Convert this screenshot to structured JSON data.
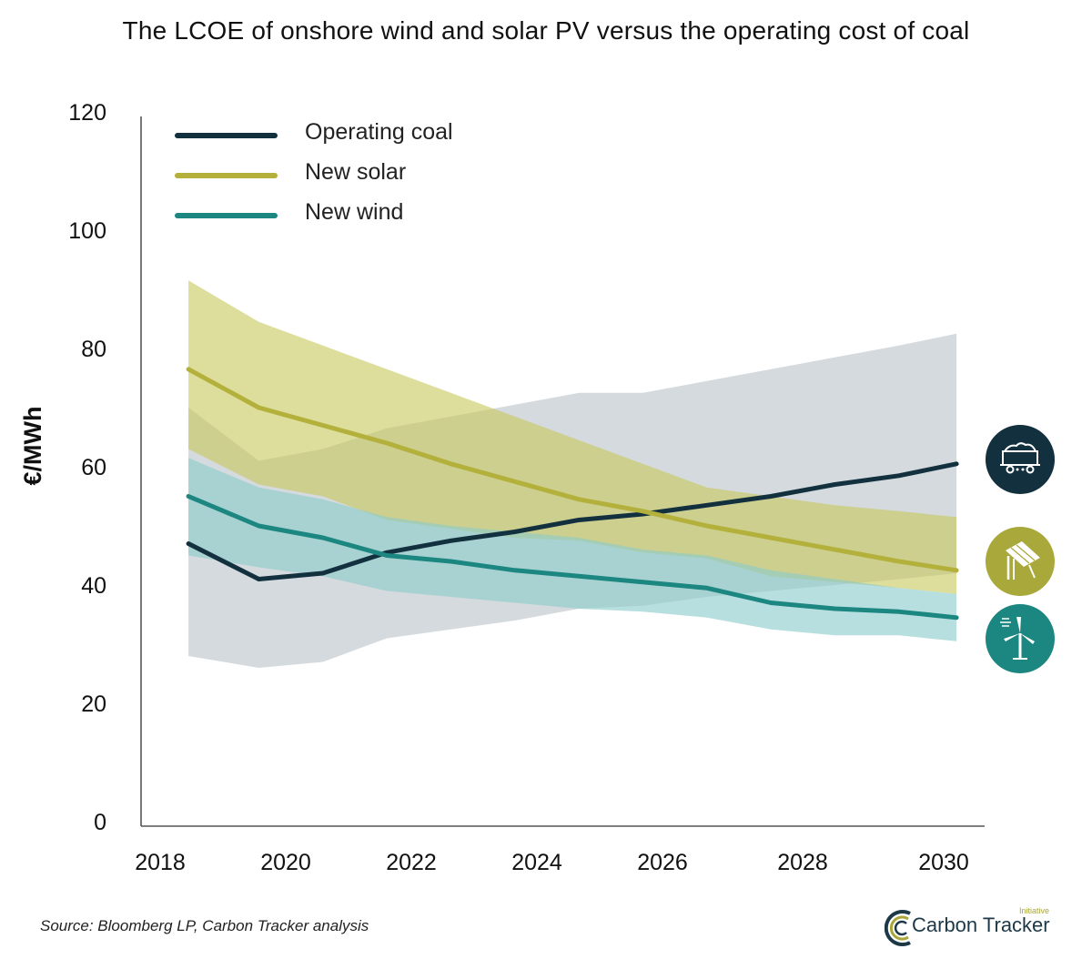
{
  "chart_data": {
    "type": "line",
    "title": "The LCOE of onshore wind and solar PV versus the operating cost of coal",
    "ylabel": "€/MWh",
    "xlabel": "",
    "ylim": [
      0,
      120
    ],
    "yticks": [
      0,
      20,
      40,
      60,
      80,
      100,
      120
    ],
    "xticks": [
      2018,
      2020,
      2022,
      2024,
      2026,
      2028,
      2030
    ],
    "xticks_labels": [
      "2018",
      "2020",
      "2022",
      "2024",
      "2026",
      "2028",
      "2030"
    ],
    "yticks_labels": [
      "0",
      "20",
      "40",
      "60",
      "80",
      "100",
      "120"
    ],
    "x": [
      2018.2,
      2019.3,
      2020.3,
      2021.3,
      2022.3,
      2023.3,
      2024.3,
      2025.3,
      2026.3,
      2027.3,
      2028.3,
      2029.3,
      2030.2
    ],
    "series": [
      {
        "name": "Operating coal",
        "color": "#13303f",
        "values": [
          47,
          41,
          42,
          45.5,
          47.5,
          49,
          51,
          52,
          53.5,
          55,
          57,
          58.5,
          60.5
        ],
        "band_low": [
          28,
          26,
          27,
          31,
          32.5,
          34,
          36,
          36.5,
          38,
          39,
          40,
          41,
          42
        ],
        "band_high": [
          70,
          61,
          63,
          66.5,
          68.5,
          70.5,
          72.5,
          72.5,
          74.5,
          76.5,
          78.5,
          80.5,
          82.5
        ],
        "band_color": "#b9c3c8"
      },
      {
        "name": "New solar",
        "color": "#b3b13b",
        "values": [
          76.5,
          70,
          67,
          64,
          60.5,
          57.5,
          54.5,
          52.5,
          50,
          48,
          46,
          44,
          42.5
        ],
        "band_low": [
          63,
          57,
          55,
          51,
          49.5,
          48,
          47.5,
          45.5,
          44.5,
          41.5,
          40.5,
          39.5,
          38.5
        ],
        "band_high": [
          91.5,
          84.5,
          80.5,
          76.5,
          72.5,
          68.5,
          64.5,
          60.5,
          56.5,
          55,
          53.5,
          52.5,
          51.5
        ],
        "band_color": "#c8c860"
      },
      {
        "name": "New wind",
        "color": "#1c8680",
        "values": [
          55,
          50,
          48,
          45,
          44,
          42.5,
          41.5,
          40.5,
          39.5,
          37,
          36,
          35.5,
          34.5
        ],
        "band_low": [
          45,
          43,
          41.5,
          39,
          38,
          37,
          36,
          35.5,
          34.5,
          32.5,
          31.5,
          31.5,
          30.5
        ],
        "band_high": [
          61.5,
          56.5,
          54.5,
          51.5,
          50,
          49,
          48,
          46,
          45,
          42.5,
          41,
          39.5,
          38.5
        ],
        "band_color": "#8ccccc"
      }
    ],
    "legend_position": "top-left"
  },
  "icons": [
    {
      "name": "coal-wagon-icon",
      "color": "#13303f"
    },
    {
      "name": "solar-panel-icon",
      "color": "#a9a83a"
    },
    {
      "name": "wind-turbine-icon",
      "color": "#1c8680"
    }
  ],
  "footer": {
    "source": "Source: Bloomberg LP, Carbon Tracker analysis",
    "brand_name": "Carbon Tracker",
    "brand_tagline": "Initiative"
  }
}
